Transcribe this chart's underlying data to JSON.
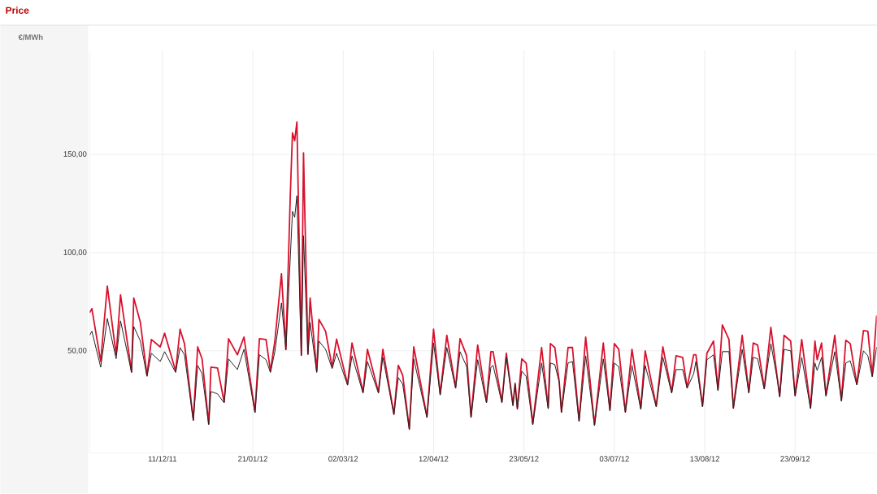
{
  "chart_data": {
    "type": "line",
    "title": "Price",
    "ylabel": "€/MWh",
    "x": [
      "2011-11-08",
      "2011-11-09",
      "2011-11-13",
      "2011-11-16",
      "2011-11-20",
      "2011-11-22",
      "2011-11-27",
      "2011-11-28",
      "2011-12-01",
      "2011-12-04",
      "2011-12-06",
      "2011-12-10",
      "2011-12-12",
      "2011-12-17",
      "2011-12-19",
      "2011-12-21",
      "2011-12-25",
      "2011-12-27",
      "2011-12-29",
      "2012-01-01",
      "2012-01-02",
      "2012-01-05",
      "2012-01-08",
      "2012-01-10",
      "2012-01-14",
      "2012-01-17",
      "2012-01-22",
      "2012-01-24",
      "2012-01-27",
      "2012-01-29",
      "2012-01-31",
      "2012-02-03",
      "2012-02-05",
      "2012-02-07",
      "2012-02-08",
      "2012-02-09",
      "2012-02-10",
      "2012-02-12",
      "2012-02-13",
      "2012-02-15",
      "2012-02-16",
      "2012-02-19",
      "2012-02-20",
      "2012-02-23",
      "2012-02-26",
      "2012-02-28",
      "2012-03-04",
      "2012-03-06",
      "2012-03-11",
      "2012-03-13",
      "2012-03-18",
      "2012-03-20",
      "2012-03-25",
      "2012-03-27",
      "2012-03-29",
      "2012-04-01",
      "2012-04-03",
      "2012-04-09",
      "2012-04-12",
      "2012-04-15",
      "2012-04-18",
      "2012-04-22",
      "2012-04-24",
      "2012-04-27",
      "2012-04-29",
      "2012-05-02",
      "2012-05-06",
      "2012-05-08",
      "2012-05-09",
      "2012-05-13",
      "2012-05-15",
      "2012-05-18",
      "2012-05-19",
      "2012-05-20",
      "2012-05-22",
      "2012-05-24",
      "2012-05-27",
      "2012-05-31",
      "2012-06-03",
      "2012-06-04",
      "2012-06-06",
      "2012-06-08",
      "2012-06-09",
      "2012-06-12",
      "2012-06-14",
      "2012-06-17",
      "2012-06-20",
      "2012-06-24",
      "2012-06-28",
      "2012-07-01",
      "2012-07-03",
      "2012-07-05",
      "2012-07-08",
      "2012-07-11",
      "2012-07-15",
      "2012-07-17",
      "2012-07-22",
      "2012-07-25",
      "2012-07-29",
      "2012-07-31",
      "2012-08-03",
      "2012-08-05",
      "2012-08-08",
      "2012-08-09",
      "2012-08-12",
      "2012-08-14",
      "2012-08-17",
      "2012-08-19",
      "2012-08-21",
      "2012-08-24",
      "2012-08-26",
      "2012-08-30",
      "2012-09-02",
      "2012-09-04",
      "2012-09-06",
      "2012-09-09",
      "2012-09-12",
      "2012-09-15",
      "2012-09-16",
      "2012-09-18",
      "2012-09-21",
      "2012-09-23",
      "2012-09-26",
      "2012-09-30",
      "2012-10-02",
      "2012-10-03",
      "2012-10-05",
      "2012-10-07",
      "2012-10-11",
      "2012-10-14",
      "2012-10-16",
      "2012-10-18",
      "2012-10-21",
      "2012-10-24",
      "2012-10-26",
      "2012-10-28",
      "2012-10-30"
    ],
    "series": [
      {
        "color": "#d9102c",
        "values": [
          69.4,
          71.5,
          44.6,
          83,
          48,
          78.5,
          39.3,
          76.9,
          64.5,
          37.6,
          55.8,
          52,
          59,
          39.7,
          61,
          53.7,
          14.9,
          52,
          45.9,
          12.8,
          41.7,
          41.3,
          24,
          56.2,
          48,
          57,
          19,
          56.2,
          55.8,
          39.7,
          55,
          89.3,
          50.8,
          129,
          161,
          157,
          166.5,
          48,
          150.8,
          48.8,
          76.9,
          39.7,
          66,
          60,
          41.7,
          56,
          33,
          54,
          29,
          50.8,
          29,
          50.8,
          17.8,
          42.6,
          37.6,
          10.3,
          52,
          16.5,
          61,
          28,
          57.9,
          31.4,
          56.2,
          47.5,
          16.5,
          53,
          24,
          49.6,
          49.6,
          24,
          48.8,
          22.7,
          33.5,
          20.7,
          45.9,
          43.8,
          12.8,
          51.7,
          21,
          53.7,
          51.7,
          34.3,
          19,
          51.7,
          51.7,
          14.5,
          57,
          12.4,
          54,
          19.8,
          53.7,
          50.8,
          19,
          50.8,
          20.7,
          50,
          21.9,
          52,
          29,
          47.5,
          46.7,
          31.4,
          48,
          48,
          21.9,
          48.8,
          55,
          30.2,
          63.2,
          55.8,
          21,
          57.9,
          29,
          54,
          53,
          31,
          62,
          35.5,
          26.9,
          57.9,
          55,
          27.3,
          55.8,
          21,
          55,
          45.5,
          54,
          27.3,
          57.9,
          24.8,
          55.4,
          53.7,
          33,
          60.3,
          60,
          37.2,
          68
        ]
      },
      {
        "color": "#222222",
        "values": [
          57.9,
          60,
          41.7,
          66.5,
          46,
          65.3,
          39,
          62.4,
          55,
          37,
          48.8,
          44.6,
          49.6,
          39,
          51.7,
          48,
          14.5,
          42.6,
          38.4,
          12.5,
          29.3,
          28.1,
          23.5,
          45.9,
          40.5,
          50.8,
          18.5,
          48,
          45.5,
          39,
          49.6,
          74.4,
          50.5,
          97.5,
          121,
          118,
          129,
          47.5,
          108.7,
          48,
          64.5,
          39,
          55,
          50.8,
          41,
          48.8,
          32.5,
          47.5,
          28.5,
          44.6,
          28.5,
          46.7,
          17.5,
          36.4,
          33,
          10,
          45.9,
          16,
          54,
          27.5,
          51.7,
          31,
          49.6,
          42,
          16,
          45.5,
          23.5,
          41.7,
          42.6,
          23.5,
          46.7,
          22,
          33,
          20.2,
          39.7,
          37,
          12.4,
          43.8,
          20.5,
          43.8,
          43,
          34,
          18.6,
          43.8,
          44.6,
          14,
          47.5,
          12,
          45.9,
          19.4,
          43.8,
          42,
          18.6,
          42.6,
          20.2,
          42.6,
          21.5,
          46.7,
          28.5,
          40.5,
          40.5,
          31,
          38.4,
          44.6,
          21.5,
          45.5,
          48,
          29.8,
          49.6,
          49.6,
          20.6,
          50.8,
          28.5,
          46.7,
          46,
          30.5,
          53.7,
          35,
          26.5,
          50.8,
          50,
          27,
          46.7,
          20.6,
          43.8,
          40,
          46.7,
          27,
          49.6,
          24.4,
          43.8,
          45,
          32.6,
          50,
          47.5,
          36.8,
          52
        ]
      }
    ],
    "xlim": [
      "2011-11-08",
      "2012-10-30"
    ],
    "ylim": [
      -2,
      203
    ],
    "xticks": [
      {
        "value": "2011-12-11",
        "label": "11/12/11"
      },
      {
        "value": "2012-01-21",
        "label": "21/01/12"
      },
      {
        "value": "2012-03-02",
        "label": "02/03/12"
      },
      {
        "value": "2012-04-12",
        "label": "12/04/12"
      },
      {
        "value": "2012-05-23",
        "label": "23/05/12"
      },
      {
        "value": "2012-07-03",
        "label": "03/07/12"
      },
      {
        "value": "2012-08-13",
        "label": "13/08/12"
      },
      {
        "value": "2012-09-23",
        "label": "23/09/12"
      }
    ],
    "yticks": [
      {
        "value": 50,
        "label": "50,00"
      },
      {
        "value": 100,
        "label": "100,00"
      },
      {
        "value": 150,
        "label": "150,00"
      }
    ],
    "grid": true,
    "marker": "none",
    "line_style": "solid"
  }
}
